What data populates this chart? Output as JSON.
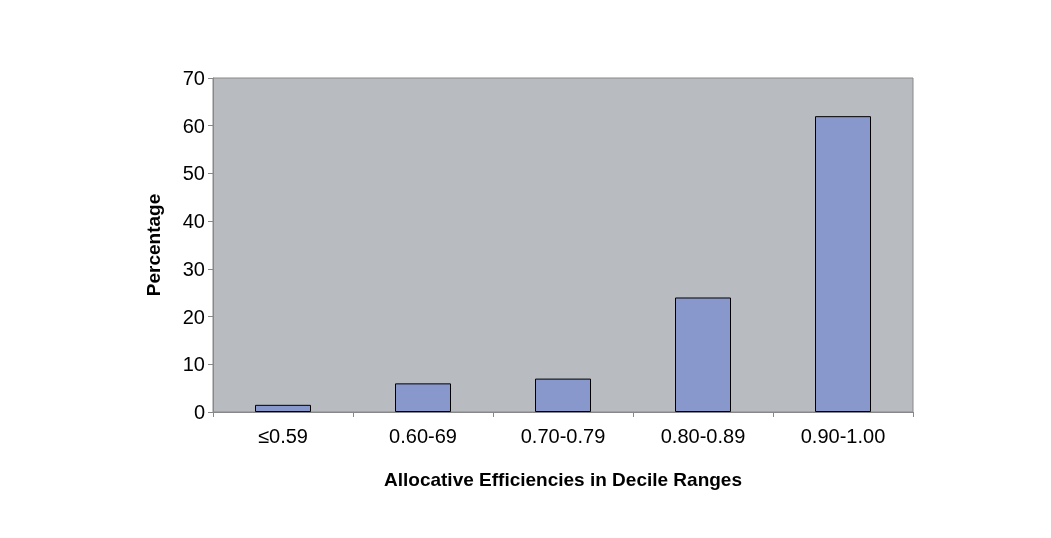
{
  "chart_data": {
    "type": "bar",
    "xlabel": "Allocative Efficiencies in Decile Ranges",
    "ylabel": "Percentage",
    "categories": [
      "≤0.59",
      "0.60-69",
      "0.70-0.79",
      "0.80-0.89",
      "0.90-1.00"
    ],
    "values": [
      1.5,
      6,
      7,
      24,
      62
    ],
    "color": "#8898cc",
    "ylim": [
      0,
      70
    ],
    "yticks": [
      0,
      10,
      20,
      30,
      40,
      50,
      60,
      70
    ],
    "grid": false
  }
}
